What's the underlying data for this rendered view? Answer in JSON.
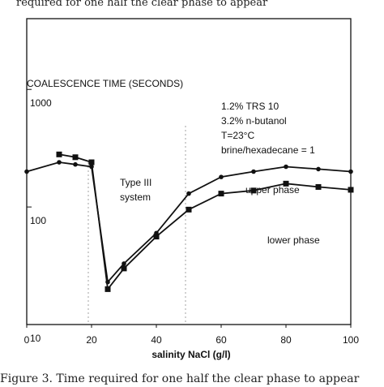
{
  "caption": {
    "top_fragment": "required for one half the clear phase to appear",
    "bottom_fragment": "Figure 3. Time required for one half the clear phase to appear"
  },
  "chart_data": {
    "type": "line",
    "ylabel": "COALESCENCE TIME (SECONDS)",
    "xlabel": "salinity NaCl (g/l)",
    "yscale": "log",
    "xlim": [
      0,
      100
    ],
    "ylim": [
      10,
      4000
    ],
    "x_ticks": [
      "0",
      "20",
      "40",
      "60",
      "80",
      "100"
    ],
    "y_ticks": [
      "10",
      "100",
      "1000"
    ],
    "conditions": [
      "1.2% TRS 10",
      "3.2% n-butanol",
      "T=23°C",
      "brine/hexadecane = 1"
    ],
    "region_label": [
      "Type III",
      "system"
    ],
    "series": [
      {
        "name": "upper phase",
        "marker": "circle",
        "x": [
          0,
          10,
          15,
          20,
          25,
          30,
          40,
          50,
          60,
          70,
          80,
          90,
          100
        ],
        "y": [
          200,
          240,
          230,
          220,
          23,
          33,
          60,
          130,
          180,
          200,
          220,
          210,
          200
        ]
      },
      {
        "name": "lower phase",
        "marker": "square",
        "x": [
          10,
          15,
          20,
          25,
          30,
          40,
          50,
          60,
          70,
          80,
          90,
          100
        ],
        "y": [
          280,
          265,
          240,
          20,
          30,
          56,
          95,
          130,
          138,
          158,
          148,
          140
        ]
      }
    ],
    "vlines": [
      19,
      49
    ],
    "grid": false
  },
  "colors": {
    "line": "#111111",
    "dash": "#999999"
  }
}
